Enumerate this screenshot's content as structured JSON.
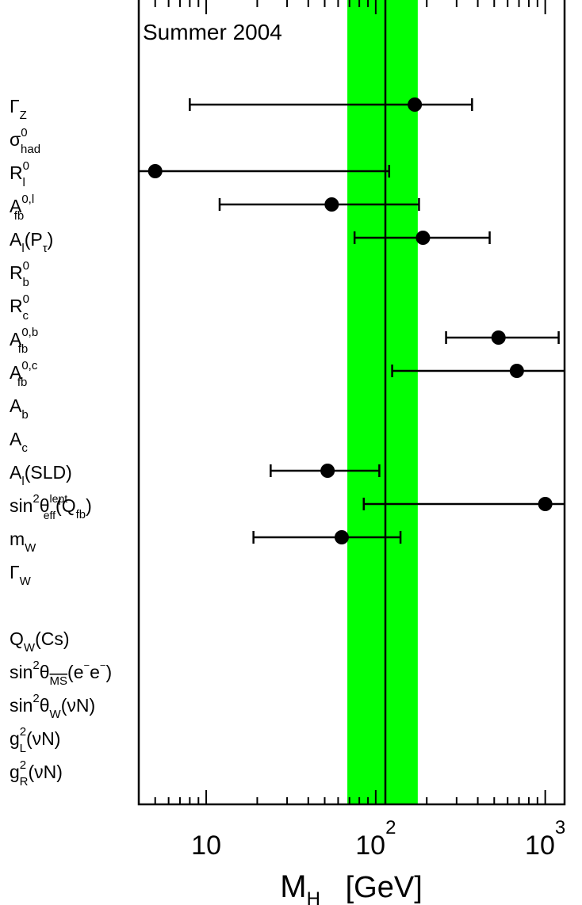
{
  "chart_data": {
    "type": "scatter",
    "title": "Summer 2004",
    "xlabel": "M",
    "xlabel_subscript": "H",
    "xlabel_unit": "[GeV]",
    "x_scale": "log",
    "xlim": [
      4,
      1300
    ],
    "x_ticks": [
      {
        "value": 10,
        "base": "10",
        "exp": ""
      },
      {
        "value": 100,
        "base": "10",
        "exp": "2"
      },
      {
        "value": 1000,
        "base": "10",
        "exp": "3"
      }
    ],
    "band": {
      "lo": 68,
      "hi": 177,
      "color": "#00ff00"
    },
    "central_line": 114,
    "rows": [
      {
        "label": "Γ",
        "sub": "Z",
        "sup": "",
        "suffix": "",
        "value": 170,
        "lo": 8,
        "hi": 370
      },
      {
        "label": "σ",
        "sub": "had",
        "sup": "0",
        "suffix": ""
      },
      {
        "label": "R",
        "sub": "l",
        "sup": "0",
        "suffix": "",
        "value": 5,
        "lo": 4,
        "hi": 120
      },
      {
        "label": "A",
        "sub": "fb",
        "sup": "0,l",
        "suffix": "",
        "value": 55,
        "lo": 12,
        "hi": 180
      },
      {
        "label": "A",
        "sub": "l",
        "sup": "",
        "suffix": "(P",
        "suffix_sub": "τ",
        "suffix_end": ")",
        "value": 190,
        "lo": 75,
        "hi": 470
      },
      {
        "label": "R",
        "sub": "b",
        "sup": "0",
        "suffix": ""
      },
      {
        "label": "R",
        "sub": "c",
        "sup": "0",
        "suffix": ""
      },
      {
        "label": "A",
        "sub": "fb",
        "sup": "0,b",
        "suffix": "",
        "value": 530,
        "lo": 260,
        "hi": 1200
      },
      {
        "label": "A",
        "sub": "fb",
        "sup": "0,c",
        "suffix": "",
        "value": 680,
        "lo": 125,
        "hi": 1300
      },
      {
        "label": "A",
        "sub": "b",
        "sup": "",
        "suffix": ""
      },
      {
        "label": "A",
        "sub": "c",
        "sup": "",
        "suffix": ""
      },
      {
        "label": "A",
        "sub": "l",
        "sup": "",
        "suffix": "(SLD)",
        "value": 52,
        "lo": 24,
        "hi": 105
      },
      {
        "label": "sin",
        "sub": "",
        "sup": "2",
        "suffix": "θ",
        "suffix_sub": "eff",
        "suffix_sup": "lept",
        "suffix_end": "(Q",
        "end_sub": "fb",
        "end_close": ")",
        "value": 1000,
        "lo": 85,
        "hi": 1300
      },
      {
        "label": "m",
        "sub": "W",
        "sup": "",
        "suffix": "",
        "value": 63,
        "lo": 19,
        "hi": 140
      },
      {
        "label": "Γ",
        "sub": "W",
        "sup": "",
        "suffix": ""
      },
      {
        "label": "",
        "sub": "",
        "sup": "",
        "suffix": ""
      },
      {
        "label": "Q",
        "sub": "W",
        "sup": "",
        "suffix": "(Cs)"
      },
      {
        "label": "sin",
        "sub": "",
        "sup": "2",
        "suffix": "θ",
        "suffix_sub": "MS",
        "suffix_sub_overline": true,
        "suffix_end": "(e",
        "tail": "e",
        "tail_close": ")"
      },
      {
        "label": "sin",
        "sub": "",
        "sup": "2",
        "suffix": "θ",
        "suffix_sub": "W",
        "suffix_end": "(νN)"
      },
      {
        "label": "g",
        "sub": "L",
        "sup": "2",
        "suffix": "(νN)"
      },
      {
        "label": "g",
        "sub": "R",
        "sup": "2",
        "suffix": "(νN)"
      }
    ],
    "colors": {
      "band": "#00ff00",
      "marker": "#000000",
      "axis": "#000000"
    },
    "grid": false,
    "legend": "none"
  }
}
